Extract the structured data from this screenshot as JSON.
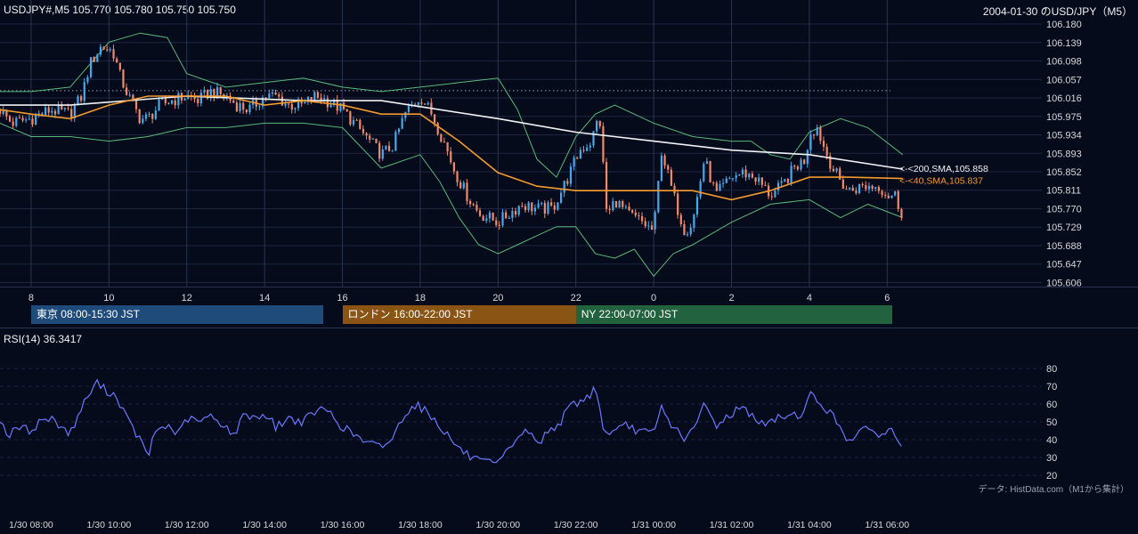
{
  "header": {
    "symbol_quote": "USDJPY#,M5 105.770 105.780 105.750 105.750",
    "chart_title": "2004-01-30 のUSD/JPY（M5）"
  },
  "sessions": [
    {
      "label": "東京 08:00-15:30 JST",
      "start_hour": 8,
      "end_hour": 15.5,
      "color": "#1f4b7a"
    },
    {
      "label": "ロンドン 16:00-22:00 JST",
      "start_hour": 16,
      "end_hour": 22,
      "color": "#8a5514"
    },
    {
      "label": "NY 22:00-07:00 JST",
      "start_hour": 22,
      "end_hour": 30.4,
      "color": "#22623e"
    }
  ],
  "rsi_label": "RSI(14) 36.3417",
  "credit": "データ: HistData.com（M1から集計）",
  "colors": {
    "up": "#4aa8ea",
    "down": "#f08a6a",
    "sma200": "#f2f2f2",
    "sma40": "#f29a2e",
    "bollinger": "#58b878",
    "rsi": "#6a78ff",
    "grid": "#1f2740",
    "ref_line": "#9aa0b0"
  },
  "chart_data": [
    {
      "type": "candlestick",
      "title": "",
      "x_tick_labels": [
        "8",
        "10",
        "12",
        "14",
        "16",
        "18",
        "20",
        "22",
        "0",
        "2",
        "4",
        "6"
      ],
      "x_tick_hours": [
        8,
        10,
        12,
        14,
        16,
        18,
        20,
        22,
        24,
        26,
        28,
        30
      ],
      "x_range_hours": [
        7.2,
        31.0
      ],
      "y_tick_labels": [
        "106.180",
        "106.139",
        "106.098",
        "106.057",
        "106.016",
        "105.975",
        "105.934",
        "105.893",
        "105.852",
        "105.811",
        "105.770",
        "105.729",
        "105.688",
        "105.647",
        "105.606"
      ],
      "ylim": [
        105.597,
        106.19
      ],
      "reference_line": 106.032,
      "last_close": 105.75,
      "overlays": [
        {
          "name": "<-<200,SMA,105.858",
          "value": 105.858,
          "color": "#f2f2f2"
        },
        {
          "name": "<-<40,SMA,105.837",
          "value": 105.837,
          "color": "#f29a2e"
        }
      ],
      "price_path": [
        [
          7.2,
          105.99
        ],
        [
          7.5,
          105.96
        ],
        [
          8.0,
          105.97
        ],
        [
          8.5,
          105.99
        ],
        [
          9.0,
          105.98
        ],
        [
          9.3,
          106.02
        ],
        [
          9.5,
          106.09
        ],
        [
          9.8,
          106.13
        ],
        [
          10.1,
          106.12
        ],
        [
          10.3,
          106.06
        ],
        [
          10.5,
          106.02
        ],
        [
          10.8,
          105.97
        ],
        [
          11.0,
          105.97
        ],
        [
          11.3,
          106.0
        ],
        [
          11.6,
          106.01
        ],
        [
          12.0,
          106.02
        ],
        [
          12.3,
          106.01
        ],
        [
          12.6,
          106.03
        ],
        [
          13.0,
          106.02
        ],
        [
          13.3,
          106.0
        ],
        [
          13.6,
          105.99
        ],
        [
          14.0,
          106.02
        ],
        [
          14.3,
          106.02
        ],
        [
          14.6,
          106.0
        ],
        [
          15.0,
          106.0
        ],
        [
          15.3,
          106.02
        ],
        [
          15.6,
          106.01
        ],
        [
          16.0,
          105.99
        ],
        [
          16.3,
          105.96
        ],
        [
          16.6,
          105.93
        ],
        [
          17.0,
          105.89
        ],
        [
          17.3,
          105.91
        ],
        [
          17.6,
          105.98
        ],
        [
          18.0,
          106.02
        ],
        [
          18.3,
          105.98
        ],
        [
          18.6,
          105.92
        ],
        [
          18.9,
          105.85
        ],
        [
          19.2,
          105.8
        ],
        [
          19.5,
          105.76
        ],
        [
          20.0,
          105.74
        ],
        [
          20.3,
          105.76
        ],
        [
          20.6,
          105.78
        ],
        [
          21.0,
          105.77
        ],
        [
          21.4,
          105.77
        ],
        [
          21.8,
          105.84
        ],
        [
          22.1,
          105.9
        ],
        [
          22.4,
          105.92
        ],
        [
          22.6,
          105.98
        ],
        [
          22.8,
          105.75
        ],
        [
          23.0,
          105.79
        ],
        [
          23.3,
          105.76
        ],
        [
          23.7,
          105.74
        ],
        [
          24.0,
          105.72
        ],
        [
          24.2,
          105.9
        ],
        [
          24.5,
          105.8
        ],
        [
          24.8,
          105.72
        ],
        [
          25.0,
          105.74
        ],
        [
          25.3,
          105.88
        ],
        [
          25.6,
          105.8
        ],
        [
          26.0,
          105.84
        ],
        [
          26.3,
          105.85
        ],
        [
          26.6,
          105.84
        ],
        [
          27.0,
          105.8
        ],
        [
          27.3,
          105.82
        ],
        [
          27.6,
          105.86
        ],
        [
          27.9,
          105.88
        ],
        [
          28.0,
          105.94
        ],
        [
          28.2,
          105.95
        ],
        [
          28.4,
          105.9
        ],
        [
          28.6,
          105.86
        ],
        [
          28.8,
          105.83
        ],
        [
          29.0,
          105.81
        ],
        [
          29.4,
          105.82
        ],
        [
          29.8,
          105.82
        ],
        [
          30.0,
          105.8
        ],
        [
          30.2,
          105.8
        ],
        [
          30.4,
          105.75
        ]
      ],
      "sma200_path": [
        [
          7.2,
          106.0
        ],
        [
          9.0,
          106.0
        ],
        [
          12.0,
          106.02
        ],
        [
          15.0,
          106.01
        ],
        [
          17.0,
          106.01
        ],
        [
          18.5,
          105.99
        ],
        [
          20.0,
          105.97
        ],
        [
          22.0,
          105.94
        ],
        [
          24.0,
          105.92
        ],
        [
          26.0,
          105.9
        ],
        [
          28.0,
          105.89
        ],
        [
          30.4,
          105.858
        ]
      ],
      "sma40_path": [
        [
          7.2,
          105.99
        ],
        [
          8.0,
          105.98
        ],
        [
          9.0,
          105.97
        ],
        [
          10.0,
          106.0
        ],
        [
          11.0,
          106.02
        ],
        [
          12.0,
          106.02
        ],
        [
          13.0,
          106.02
        ],
        [
          14.0,
          106.0
        ],
        [
          15.0,
          106.01
        ],
        [
          16.0,
          106.0
        ],
        [
          17.0,
          105.98
        ],
        [
          18.0,
          105.98
        ],
        [
          19.0,
          105.92
        ],
        [
          20.0,
          105.85
        ],
        [
          21.0,
          105.82
        ],
        [
          22.0,
          105.81
        ],
        [
          23.0,
          105.81
        ],
        [
          24.0,
          105.81
        ],
        [
          25.0,
          105.81
        ],
        [
          26.0,
          105.79
        ],
        [
          27.0,
          105.81
        ],
        [
          28.0,
          105.84
        ],
        [
          29.0,
          105.84
        ],
        [
          30.4,
          105.837
        ]
      ],
      "bb_upper_path": [
        [
          7.2,
          106.03
        ],
        [
          8.0,
          106.03
        ],
        [
          9.0,
          106.04
        ],
        [
          10.0,
          106.14
        ],
        [
          10.8,
          106.16
        ],
        [
          11.5,
          106.15
        ],
        [
          12.0,
          106.07
        ],
        [
          13.0,
          106.04
        ],
        [
          14.0,
          106.05
        ],
        [
          15.0,
          106.06
        ],
        [
          16.0,
          106.04
        ],
        [
          17.0,
          106.03
        ],
        [
          18.0,
          106.04
        ],
        [
          19.0,
          106.05
        ],
        [
          20.0,
          106.06
        ],
        [
          20.5,
          105.99
        ],
        [
          21.0,
          105.88
        ],
        [
          21.5,
          105.84
        ],
        [
          22.0,
          105.93
        ],
        [
          22.5,
          105.98
        ],
        [
          23.0,
          106.0
        ],
        [
          23.5,
          105.98
        ],
        [
          24.0,
          105.96
        ],
        [
          25.0,
          105.93
        ],
        [
          26.0,
          105.92
        ],
        [
          26.5,
          105.92
        ],
        [
          27.0,
          105.89
        ],
        [
          27.5,
          105.88
        ],
        [
          28.0,
          105.94
        ],
        [
          28.8,
          105.97
        ],
        [
          29.5,
          105.95
        ],
        [
          30.4,
          105.89
        ]
      ],
      "bb_lower_path": [
        [
          7.2,
          105.96
        ],
        [
          8.0,
          105.93
        ],
        [
          9.0,
          105.93
        ],
        [
          10.0,
          105.92
        ],
        [
          11.0,
          105.93
        ],
        [
          12.0,
          105.95
        ],
        [
          13.0,
          105.95
        ],
        [
          14.0,
          105.96
        ],
        [
          15.0,
          105.96
        ],
        [
          16.0,
          105.95
        ],
        [
          17.0,
          105.86
        ],
        [
          18.0,
          105.89
        ],
        [
          18.5,
          105.83
        ],
        [
          19.0,
          105.75
        ],
        [
          19.5,
          105.69
        ],
        [
          20.0,
          105.67
        ],
        [
          20.5,
          105.69
        ],
        [
          21.0,
          105.71
        ],
        [
          21.5,
          105.73
        ],
        [
          22.0,
          105.73
        ],
        [
          22.5,
          105.67
        ],
        [
          23.0,
          105.66
        ],
        [
          23.5,
          105.68
        ],
        [
          24.0,
          105.62
        ],
        [
          24.5,
          105.67
        ],
        [
          25.0,
          105.69
        ],
        [
          26.0,
          105.74
        ],
        [
          27.0,
          105.78
        ],
        [
          28.0,
          105.79
        ],
        [
          28.8,
          105.75
        ],
        [
          29.5,
          105.78
        ],
        [
          30.4,
          105.75
        ]
      ]
    },
    {
      "type": "line",
      "title": "",
      "name": "RSI(14)",
      "ylim": [
        17,
        88
      ],
      "y_tick_labels": [
        "80",
        "70",
        "60",
        "50",
        "40",
        "30",
        "20"
      ],
      "y_ticks": [
        80,
        70,
        60,
        50,
        40,
        30,
        20
      ],
      "x_tick_labels": [
        "1/30 08:00",
        "1/30 10:00",
        "1/30 12:00",
        "1/30 14:00",
        "1/30 16:00",
        "1/30 18:00",
        "1/30 20:00",
        "1/30 22:00",
        "1/31 00:00",
        "1/31 02:00",
        "1/31 04:00",
        "1/31 06:00"
      ],
      "x_tick_hours": [
        8,
        10,
        12,
        14,
        16,
        18,
        20,
        22,
        24,
        26,
        28,
        30
      ],
      "points": [
        [
          7.2,
          52
        ],
        [
          7.4,
          42
        ],
        [
          7.7,
          47
        ],
        [
          8.0,
          45
        ],
        [
          8.3,
          52
        ],
        [
          8.6,
          51
        ],
        [
          9.0,
          43
        ],
        [
          9.3,
          58
        ],
        [
          9.5,
          66
        ],
        [
          9.7,
          72
        ],
        [
          9.9,
          68
        ],
        [
          10.1,
          66
        ],
        [
          10.3,
          60
        ],
        [
          10.5,
          50
        ],
        [
          10.8,
          40
        ],
        [
          11.0,
          30
        ],
        [
          11.2,
          45
        ],
        [
          11.5,
          48
        ],
        [
          11.8,
          43
        ],
        [
          12.0,
          52
        ],
        [
          12.3,
          50
        ],
        [
          12.6,
          53
        ],
        [
          13.0,
          48
        ],
        [
          13.2,
          42
        ],
        [
          13.5,
          55
        ],
        [
          13.8,
          52
        ],
        [
          14.0,
          55
        ],
        [
          14.3,
          47
        ],
        [
          14.6,
          52
        ],
        [
          15.0,
          50
        ],
        [
          15.3,
          56
        ],
        [
          15.6,
          57
        ],
        [
          16.0,
          47
        ],
        [
          16.3,
          43
        ],
        [
          16.6,
          38
        ],
        [
          17.0,
          36
        ],
        [
          17.3,
          41
        ],
        [
          17.6,
          55
        ],
        [
          17.9,
          60
        ],
        [
          18.2,
          55
        ],
        [
          18.5,
          48
        ],
        [
          18.8,
          40
        ],
        [
          19.0,
          35
        ],
        [
          19.3,
          30
        ],
        [
          19.6,
          27
        ],
        [
          20.0,
          26
        ],
        [
          20.2,
          32
        ],
        [
          20.5,
          42
        ],
        [
          20.8,
          45
        ],
        [
          21.0,
          37
        ],
        [
          21.3,
          45
        ],
        [
          21.6,
          50
        ],
        [
          21.9,
          60
        ],
        [
          22.2,
          62
        ],
        [
          22.4,
          66
        ],
        [
          22.5,
          72
        ],
        [
          22.7,
          45
        ],
        [
          23.0,
          44
        ],
        [
          23.3,
          48
        ],
        [
          23.6,
          45
        ],
        [
          24.0,
          43
        ],
        [
          24.2,
          58
        ],
        [
          24.4,
          50
        ],
        [
          24.6,
          45
        ],
        [
          24.8,
          41
        ],
        [
          25.0,
          44
        ],
        [
          25.3,
          60
        ],
        [
          25.6,
          48
        ],
        [
          25.9,
          53
        ],
        [
          26.2,
          58
        ],
        [
          26.5,
          55
        ],
        [
          26.8,
          48
        ],
        [
          27.1,
          51
        ],
        [
          27.4,
          54
        ],
        [
          27.7,
          54
        ],
        [
          27.9,
          56
        ],
        [
          28.0,
          66
        ],
        [
          28.3,
          60
        ],
        [
          28.5,
          56
        ],
        [
          28.7,
          50
        ],
        [
          29.0,
          40
        ],
        [
          29.3,
          44
        ],
        [
          29.6,
          46
        ],
        [
          29.9,
          42
        ],
        [
          30.1,
          46
        ],
        [
          30.4,
          36
        ]
      ]
    }
  ]
}
